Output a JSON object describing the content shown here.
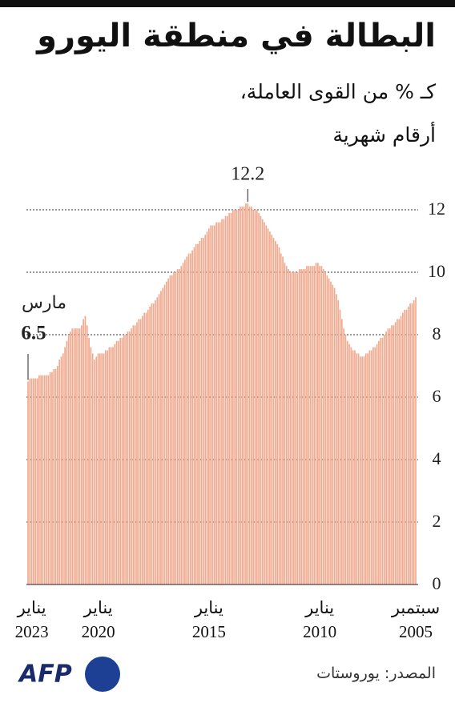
{
  "chart_data": {
    "type": "bar",
    "title": "البطالة في منطقة اليورو",
    "subtitle": [
      "كـ % من القوى العاملة،",
      "أرقام شهرية"
    ],
    "color": "#f2a98e",
    "ylim": [
      0,
      12
    ],
    "yticks": [
      0,
      2,
      4,
      6,
      8,
      10,
      12
    ],
    "grid": true,
    "categories": [
      "سبتمبر 2005",
      null,
      null,
      null,
      null,
      null,
      null,
      null,
      null,
      null,
      null,
      null,
      null,
      null,
      null,
      null,
      null,
      null,
      null,
      null,
      null,
      null,
      null,
      null,
      null,
      null,
      null,
      null,
      null,
      null,
      null,
      null,
      null,
      null,
      null,
      null,
      null,
      null,
      null,
      null,
      null,
      null,
      null,
      null,
      null,
      null,
      null,
      null,
      null,
      null,
      null,
      null,
      "يناير 2010",
      null,
      null,
      null,
      null,
      null,
      null,
      null,
      null,
      null,
      null,
      null,
      null,
      null,
      null,
      null,
      null,
      null,
      null,
      null,
      null,
      null,
      null,
      null,
      null,
      null,
      null,
      null,
      null,
      null,
      null,
      null,
      null,
      null,
      null,
      null,
      null,
      null,
      null,
      null,
      null,
      null,
      null,
      null,
      null,
      null,
      null,
      null,
      null,
      null,
      null,
      null,
      null,
      null,
      null,
      null,
      null,
      null,
      null,
      null,
      "يناير 2015",
      null,
      null,
      null,
      null,
      null,
      null,
      null,
      null,
      null,
      null,
      null,
      null,
      null,
      null,
      null,
      null,
      null,
      null,
      null,
      null,
      null,
      null,
      null,
      null,
      null,
      null,
      null,
      null,
      null,
      null,
      null,
      null,
      null,
      null,
      null,
      null,
      null,
      null,
      null,
      null,
      null,
      null,
      null,
      null,
      null,
      null,
      null,
      null,
      null,
      null,
      null,
      null,
      null,
      null,
      null,
      null,
      null,
      null,
      null,
      "يناير 2020",
      null,
      null,
      null,
      null,
      null,
      null,
      null,
      null,
      null,
      null,
      null,
      null,
      null,
      null,
      null,
      null,
      null,
      null,
      null,
      null,
      null,
      null,
      null,
      null,
      null,
      null,
      null,
      null,
      null,
      null,
      null,
      null,
      null,
      null,
      null,
      "يناير 2023",
      null,
      null
    ],
    "values": [
      9.2,
      9.1,
      9.0,
      9.0,
      8.9,
      8.8,
      8.8,
      8.7,
      8.6,
      8.5,
      8.5,
      8.4,
      8.3,
      8.3,
      8.2,
      8.2,
      8.1,
      8.0,
      7.9,
      7.9,
      7.8,
      7.7,
      7.6,
      7.6,
      7.5,
      7.5,
      7.4,
      7.4,
      7.3,
      7.3,
      7.3,
      7.4,
      7.4,
      7.5,
      7.5,
      7.6,
      7.7,
      7.8,
      8.0,
      8.2,
      8.5,
      8.8,
      9.1,
      9.3,
      9.5,
      9.6,
      9.7,
      9.8,
      9.9,
      10.0,
      10.1,
      10.2,
      10.2,
      10.3,
      10.3,
      10.2,
      10.2,
      10.2,
      10.2,
      10.2,
      10.1,
      10.1,
      10.1,
      10.1,
      10.0,
      10.0,
      10.0,
      10.0,
      10.0,
      10.1,
      10.2,
      10.3,
      10.5,
      10.6,
      10.8,
      10.9,
      11.0,
      11.1,
      11.2,
      11.3,
      11.4,
      11.5,
      11.6,
      11.7,
      11.8,
      11.9,
      12.0,
      12.0,
      12.0,
      12.1,
      12.1,
      12.2,
      12.2,
      12.1,
      12.1,
      12.1,
      12.0,
      12.0,
      12.0,
      12.0,
      11.9,
      11.9,
      11.8,
      11.8,
      11.7,
      11.7,
      11.6,
      11.6,
      11.6,
      11.5,
      11.5,
      11.5,
      11.4,
      11.3,
      11.2,
      11.1,
      11.1,
      11.0,
      10.9,
      10.9,
      10.8,
      10.7,
      10.6,
      10.6,
      10.5,
      10.4,
      10.3,
      10.2,
      10.1,
      10.1,
      10.0,
      10.0,
      9.9,
      9.9,
      9.8,
      9.7,
      9.6,
      9.5,
      9.4,
      9.3,
      9.2,
      9.1,
      9.0,
      9.0,
      8.9,
      8.8,
      8.7,
      8.7,
      8.6,
      8.5,
      8.5,
      8.4,
      8.3,
      8.3,
      8.2,
      8.1,
      8.1,
      8.0,
      8.0,
      7.9,
      7.9,
      7.8,
      7.8,
      7.7,
      7.6,
      7.6,
      7.6,
      7.5,
      7.5,
      7.4,
      7.4,
      7.4,
      7.4,
      7.3,
      7.2,
      7.4,
      7.6,
      7.9,
      8.3,
      8.6,
      8.5,
      8.3,
      8.2,
      8.2,
      8.2,
      8.2,
      8.2,
      8.1,
      8.0,
      7.8,
      7.6,
      7.4,
      7.3,
      7.2,
      7.0,
      6.9,
      6.9,
      6.8,
      6.8,
      6.7,
      6.7,
      6.7,
      6.7,
      6.7,
      6.7,
      6.6,
      6.6,
      6.6,
      6.6,
      6.6,
      6.5
    ],
    "last_label": "مارس",
    "source": "المصدر: يوروستات",
    "logo": "AFP"
  }
}
